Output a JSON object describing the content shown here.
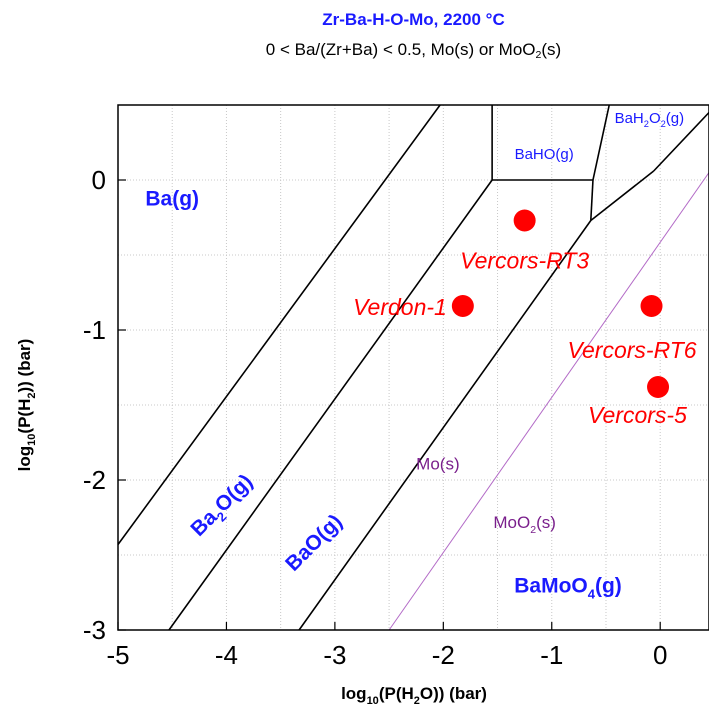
{
  "chart_data": {
    "type": "scatter",
    "title": "Zr-Ba-H-O-Mo, 2200 °C",
    "subtitle": {
      "pre": "0 < Ba/(Zr+Ba) < 0.5,  Mo(s) or MoO",
      "sub": "2",
      "post": "(s)"
    },
    "xlabel": {
      "pre": "log",
      "sub1": "10",
      "mid": "(P(H",
      "sub2": "2",
      "post": "O)) (bar)"
    },
    "ylabel": {
      "pre": "log",
      "sub1": "10",
      "mid": "(P(H",
      "sub2": "2",
      "post": ")) (bar)"
    },
    "xlim": [
      -5,
      0.45
    ],
    "ylim": [
      -3,
      0.5
    ],
    "x_ticks": [
      -5,
      -4,
      -3,
      -2,
      -1,
      0
    ],
    "y_ticks": [
      -3,
      -2,
      -1,
      0
    ],
    "x_tick_labels": [
      "-5",
      "-4",
      "-3",
      "-2",
      "-1",
      "0"
    ],
    "y_tick_labels": [
      "-3",
      "-2",
      "-1",
      "0"
    ],
    "grid": true,
    "points": [
      {
        "label": "Vercors-RT3",
        "x": -1.25,
        "y": -0.27
      },
      {
        "label": "Verdon-1",
        "x": -1.82,
        "y": -0.84
      },
      {
        "label": "Vercors-RT6",
        "x": -0.08,
        "y": -0.84
      },
      {
        "label": "Vercors-5",
        "x": -0.02,
        "y": -1.38
      }
    ],
    "boundaries": [
      [
        [
          -5,
          -2.43
        ],
        [
          -2.03,
          0.5
        ]
      ],
      [
        [
          -4.53,
          -3
        ],
        [
          -1.55,
          0
        ]
      ],
      [
        [
          -3.33,
          -3
        ],
        [
          -0.64,
          -0.27
        ]
      ],
      [
        [
          -1.55,
          0.5
        ],
        [
          -1.55,
          0
        ]
      ],
      [
        [
          -1.55,
          0
        ],
        [
          -0.62,
          0
        ]
      ],
      [
        [
          -0.62,
          0
        ],
        [
          -0.47,
          0.5
        ]
      ],
      [
        [
          -0.62,
          0
        ],
        [
          -0.64,
          -0.27
        ]
      ],
      [
        [
          -0.64,
          -0.27
        ],
        [
          -0.06,
          0.06
        ]
      ],
      [
        [
          -0.06,
          0.06
        ],
        [
          0.45,
          0.45
        ]
      ]
    ],
    "mo_moo2_line": [
      [
        -2.5,
        -3
      ],
      [
        0.45,
        0.05
      ]
    ],
    "regions": [
      {
        "text": "Ba(g)",
        "x": -4.5,
        "y": -0.17,
        "bold": true,
        "rotate": 0
      },
      {
        "text": "Ba",
        "sub": "2",
        "post": "O(g)",
        "x": -4.0,
        "y": -2.2,
        "bold": true,
        "rotate": -45
      },
      {
        "text": "BaO(g)",
        "x": -3.15,
        "y": -2.45,
        "bold": true,
        "rotate": -45
      },
      {
        "text": "BaHO(g)",
        "x": -1.07,
        "y": 0.14,
        "bold": false,
        "rotate": 0
      },
      {
        "text": "BaH",
        "sub": "2",
        "post": "O",
        "sub2": "2",
        "post2": "(g)",
        "x": -0.1,
        "y": 0.38,
        "bold": false,
        "rotate": 0
      },
      {
        "text": "BaMoO",
        "sub": "4",
        "post": "(g)",
        "x": -0.85,
        "y": -2.75,
        "bold": true,
        "rotate": 0
      }
    ],
    "phase_labels": [
      {
        "text": "Mo(s)",
        "x": -2.05,
        "y": -1.93
      },
      {
        "text": "MoO",
        "sub": "2",
        "post": "(s)",
        "x": -1.25,
        "y": -2.32
      }
    ],
    "colors": {
      "points": "#ff0000",
      "regions": "#1a1aff",
      "phase": "#7a1f8c",
      "mo_line": "#b36bc7",
      "boundary": "#000000",
      "grid": "#c8c8c8"
    }
  }
}
